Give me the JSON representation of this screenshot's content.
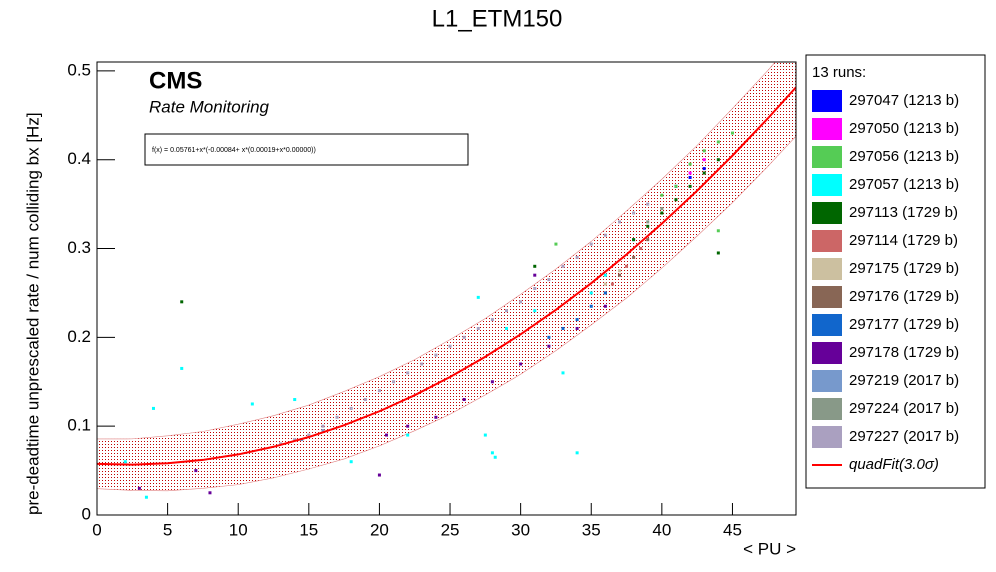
{
  "chart_data": {
    "type": "scatter",
    "title": "L1_ETM150",
    "xlabel": "< PU >",
    "ylabel": "pre-deadtime unprescaled rate / num colliding bx [Hz]",
    "logo": "CMS",
    "subtitle": "Rate Monitoring",
    "formula": "f(x) = 0.05761+x*(-0.00084+ x*(0.00019+x*0.00000))",
    "legend_title": "13 runs:",
    "xlim": [
      0,
      49.5
    ],
    "ylim": [
      0,
      0.51
    ],
    "xticks": [
      0,
      5,
      10,
      15,
      20,
      25,
      30,
      35,
      40,
      45
    ],
    "yticks": [
      0,
      0.1,
      0.2,
      0.3,
      0.4,
      0.5
    ],
    "series": [
      {
        "name": "297047 (1213 b)",
        "color": "#0000ff",
        "x": [
          41,
          42,
          43
        ],
        "values": [
          0.37,
          0.38,
          0.39
        ]
      },
      {
        "name": "297050 (1213 b)",
        "color": "#ff00ff",
        "x": [
          42,
          43
        ],
        "values": [
          0.385,
          0.4
        ]
      },
      {
        "name": "297056 (1213 b)",
        "color": "#55cc55",
        "x": [
          40,
          41,
          42,
          43,
          44,
          45,
          32.5,
          44
        ],
        "values": [
          0.36,
          0.37,
          0.395,
          0.41,
          0.42,
          0.43,
          0.305,
          0.32
        ]
      },
      {
        "name": "297057 (1213 b)",
        "color": "#00ffff",
        "x": [
          4,
          6,
          11,
          14,
          27,
          28,
          28.2,
          27.5,
          22,
          18,
          35,
          34,
          33,
          31,
          36,
          38,
          29,
          3.5,
          2
        ],
        "values": [
          0.12,
          0.165,
          0.125,
          0.13,
          0.245,
          0.07,
          0.065,
          0.09,
          0.09,
          0.06,
          0.25,
          0.07,
          0.16,
          0.23,
          0.27,
          0.31,
          0.21,
          0.02,
          0.06
        ]
      },
      {
        "name": "297113 (1729 b)",
        "color": "#006600",
        "x": [
          38,
          39,
          40,
          41,
          42,
          43,
          44,
          6,
          31,
          44
        ],
        "values": [
          0.31,
          0.325,
          0.34,
          0.355,
          0.37,
          0.385,
          0.4,
          0.24,
          0.28,
          0.295
        ]
      },
      {
        "name": "297114 (1729 b)",
        "color": "#cc6666",
        "x": [
          36.5,
          37.5,
          38.5
        ],
        "values": [
          0.26,
          0.28,
          0.3
        ]
      },
      {
        "name": "297175 (1729 b)",
        "color": "#ccc0a0",
        "x": [
          36,
          37
        ],
        "values": [
          0.26,
          0.275
        ]
      },
      {
        "name": "297176 (1729 b)",
        "color": "#886655",
        "x": [
          36,
          37,
          38,
          39
        ],
        "values": [
          0.25,
          0.27,
          0.29,
          0.31
        ]
      },
      {
        "name": "297177 (1729 b)",
        "color": "#1166cc",
        "x": [
          32,
          33,
          34,
          35,
          36
        ],
        "values": [
          0.2,
          0.21,
          0.22,
          0.235,
          0.25
        ]
      },
      {
        "name": "297178 (1729 b)",
        "color": "#660099",
        "x": [
          20.5,
          22,
          24,
          26,
          28,
          30,
          32,
          34,
          36,
          7,
          8,
          3,
          20,
          31
        ],
        "values": [
          0.09,
          0.1,
          0.11,
          0.13,
          0.15,
          0.17,
          0.19,
          0.21,
          0.235,
          0.05,
          0.025,
          0.03,
          0.045,
          0.27
        ]
      },
      {
        "name": "297219 (2017 b)",
        "color": "#7799cc",
        "x": [
          13,
          14.5,
          16
        ],
        "values": [
          0.08,
          0.085,
          0.095
        ]
      },
      {
        "name": "297224 (2017 b)",
        "color": "#889988",
        "x": [
          39,
          40
        ],
        "values": [
          0.33,
          0.345
        ]
      },
      {
        "name": "297227 (2017 b)",
        "color": "#aaa0c0",
        "x": [
          13,
          14,
          15,
          16,
          17,
          18,
          19,
          20,
          21,
          22,
          23,
          24,
          25,
          26,
          27,
          28,
          29,
          30,
          31,
          32,
          33,
          34,
          35,
          36,
          37,
          38,
          39
        ],
        "values": [
          0.08,
          0.085,
          0.09,
          0.1,
          0.11,
          0.12,
          0.13,
          0.14,
          0.15,
          0.16,
          0.17,
          0.18,
          0.19,
          0.2,
          0.21,
          0.22,
          0.23,
          0.24,
          0.255,
          0.265,
          0.28,
          0.29,
          0.305,
          0.315,
          0.33,
          0.34,
          0.35
        ]
      }
    ],
    "fit": {
      "name": "quadFit(3.0σ)",
      "color": "#ff0000",
      "x": [
        0,
        2.5,
        5,
        7.5,
        10,
        12.5,
        15,
        17.5,
        20,
        22.5,
        25,
        27.5,
        30,
        32.5,
        35,
        37.5,
        40,
        42.5,
        45,
        47.5,
        49.5
      ],
      "values": [
        0.0576,
        0.0567,
        0.0582,
        0.062,
        0.0682,
        0.0768,
        0.0878,
        0.1011,
        0.1168,
        0.1349,
        0.1554,
        0.1782,
        0.2034,
        0.231,
        0.261,
        0.2933,
        0.328,
        0.3651,
        0.4046,
        0.4464,
        0.4815
      ],
      "band_upper": [
        0.0856,
        0.0857,
        0.0892,
        0.094,
        0.1022,
        0.1118,
        0.1238,
        0.1391,
        0.1558,
        0.1749,
        0.1974,
        0.2212,
        0.2484,
        0.277,
        0.308,
        0.3423,
        0.378,
        0.4161,
        0.4576,
        0.5004,
        0.5365
      ],
      "band_lower": [
        0.0296,
        0.0277,
        0.0272,
        0.03,
        0.0342,
        0.0418,
        0.0518,
        0.0631,
        0.0778,
        0.0949,
        0.1134,
        0.1352,
        0.1584,
        0.185,
        0.214,
        0.2443,
        0.278,
        0.3141,
        0.3516,
        0.3924,
        0.4265
      ]
    }
  }
}
